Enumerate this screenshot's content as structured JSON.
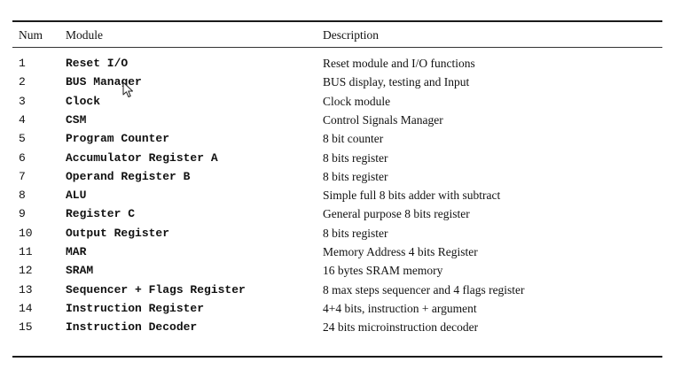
{
  "table": {
    "headers": {
      "num": "Num",
      "module": "Module",
      "description": "Description"
    },
    "rows": [
      {
        "num": "1",
        "module": "Reset I/O",
        "description": "Reset module and I/O functions"
      },
      {
        "num": "2",
        "module": "BUS Manager",
        "description": "BUS display, testing and Input"
      },
      {
        "num": "3",
        "module": "Clock",
        "description": "Clock module"
      },
      {
        "num": "4",
        "module": "CSM",
        "description": "Control Signals Manager"
      },
      {
        "num": "5",
        "module": "Program Counter",
        "description": "8 bit counter"
      },
      {
        "num": "6",
        "module": "Accumulator Register A",
        "description": "8 bits register"
      },
      {
        "num": "7",
        "module": "Operand Register B",
        "description": "8 bits register"
      },
      {
        "num": "8",
        "module": "ALU",
        "description": "Simple full 8 bits adder with subtract"
      },
      {
        "num": "9",
        "module": "Register C",
        "description": "General purpose 8 bits register"
      },
      {
        "num": "10",
        "module": "Output Register",
        "description": "8 bits register"
      },
      {
        "num": "11",
        "module": "MAR",
        "description": "Memory Address 4 bits Register"
      },
      {
        "num": "12",
        "module": "SRAM",
        "description": "16 bytes SRAM memory"
      },
      {
        "num": "13",
        "module": "Sequencer + Flags Register",
        "description": "8 max steps sequencer and 4 flags register"
      },
      {
        "num": "14",
        "module": "Instruction Register",
        "description": "4+4 bits, instruction + argument"
      },
      {
        "num": "15",
        "module": "Instruction Decoder",
        "description": "24 bits microinstruction decoder"
      }
    ]
  },
  "cursor": {
    "icon": "mouse-pointer-icon"
  }
}
